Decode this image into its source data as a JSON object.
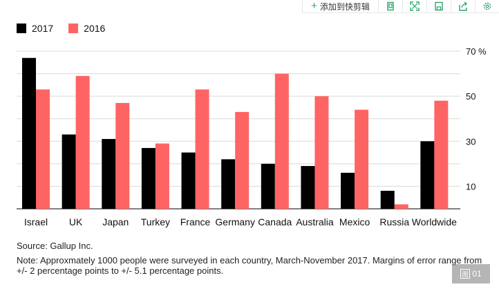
{
  "toolbar": {
    "clip_label": "添加到快剪辑",
    "icons": [
      "copy-icon",
      "fullscreen-icon",
      "save-icon",
      "share-icon",
      "settings-icon"
    ]
  },
  "legend": [
    {
      "label": "2017",
      "color": "#000000"
    },
    {
      "label": "2016",
      "color": "#ff6464"
    }
  ],
  "chart_data": {
    "type": "bar",
    "categories": [
      "Israel",
      "UK",
      "Japan",
      "Turkey",
      "France",
      "Germany",
      "Canada",
      "Australia",
      "Mexico",
      "Russia",
      "Worldwide"
    ],
    "series": [
      {
        "name": "2017",
        "color": "#000000",
        "values": [
          67,
          33,
          31,
          27,
          25,
          22,
          20,
          19,
          16,
          8,
          30
        ]
      },
      {
        "name": "2016",
        "color": "#ff6464",
        "values": [
          53,
          59,
          47,
          29,
          53,
          43,
          60,
          50,
          44,
          2,
          48
        ]
      }
    ],
    "ylim": [
      0,
      70
    ],
    "y_ticks": [
      10,
      30,
      50,
      70
    ],
    "y_tick_labels": [
      "10",
      "30",
      "50",
      "70 %"
    ],
    "gridlines": [
      10,
      20,
      30,
      40,
      50,
      60,
      70
    ],
    "grid": true,
    "y_axis_side": "right",
    "title": "",
    "xlabel": "",
    "ylabel": ""
  },
  "source": "Source: Gallup Inc.",
  "note": "Note: Approxmately 1000 people were surveyed in each country, March-November 2017. Margins of error range from +/- 2 percentage points to +/- 5.1 percentage points.",
  "badge": {
    "icon_char": "图",
    "label": "01"
  }
}
